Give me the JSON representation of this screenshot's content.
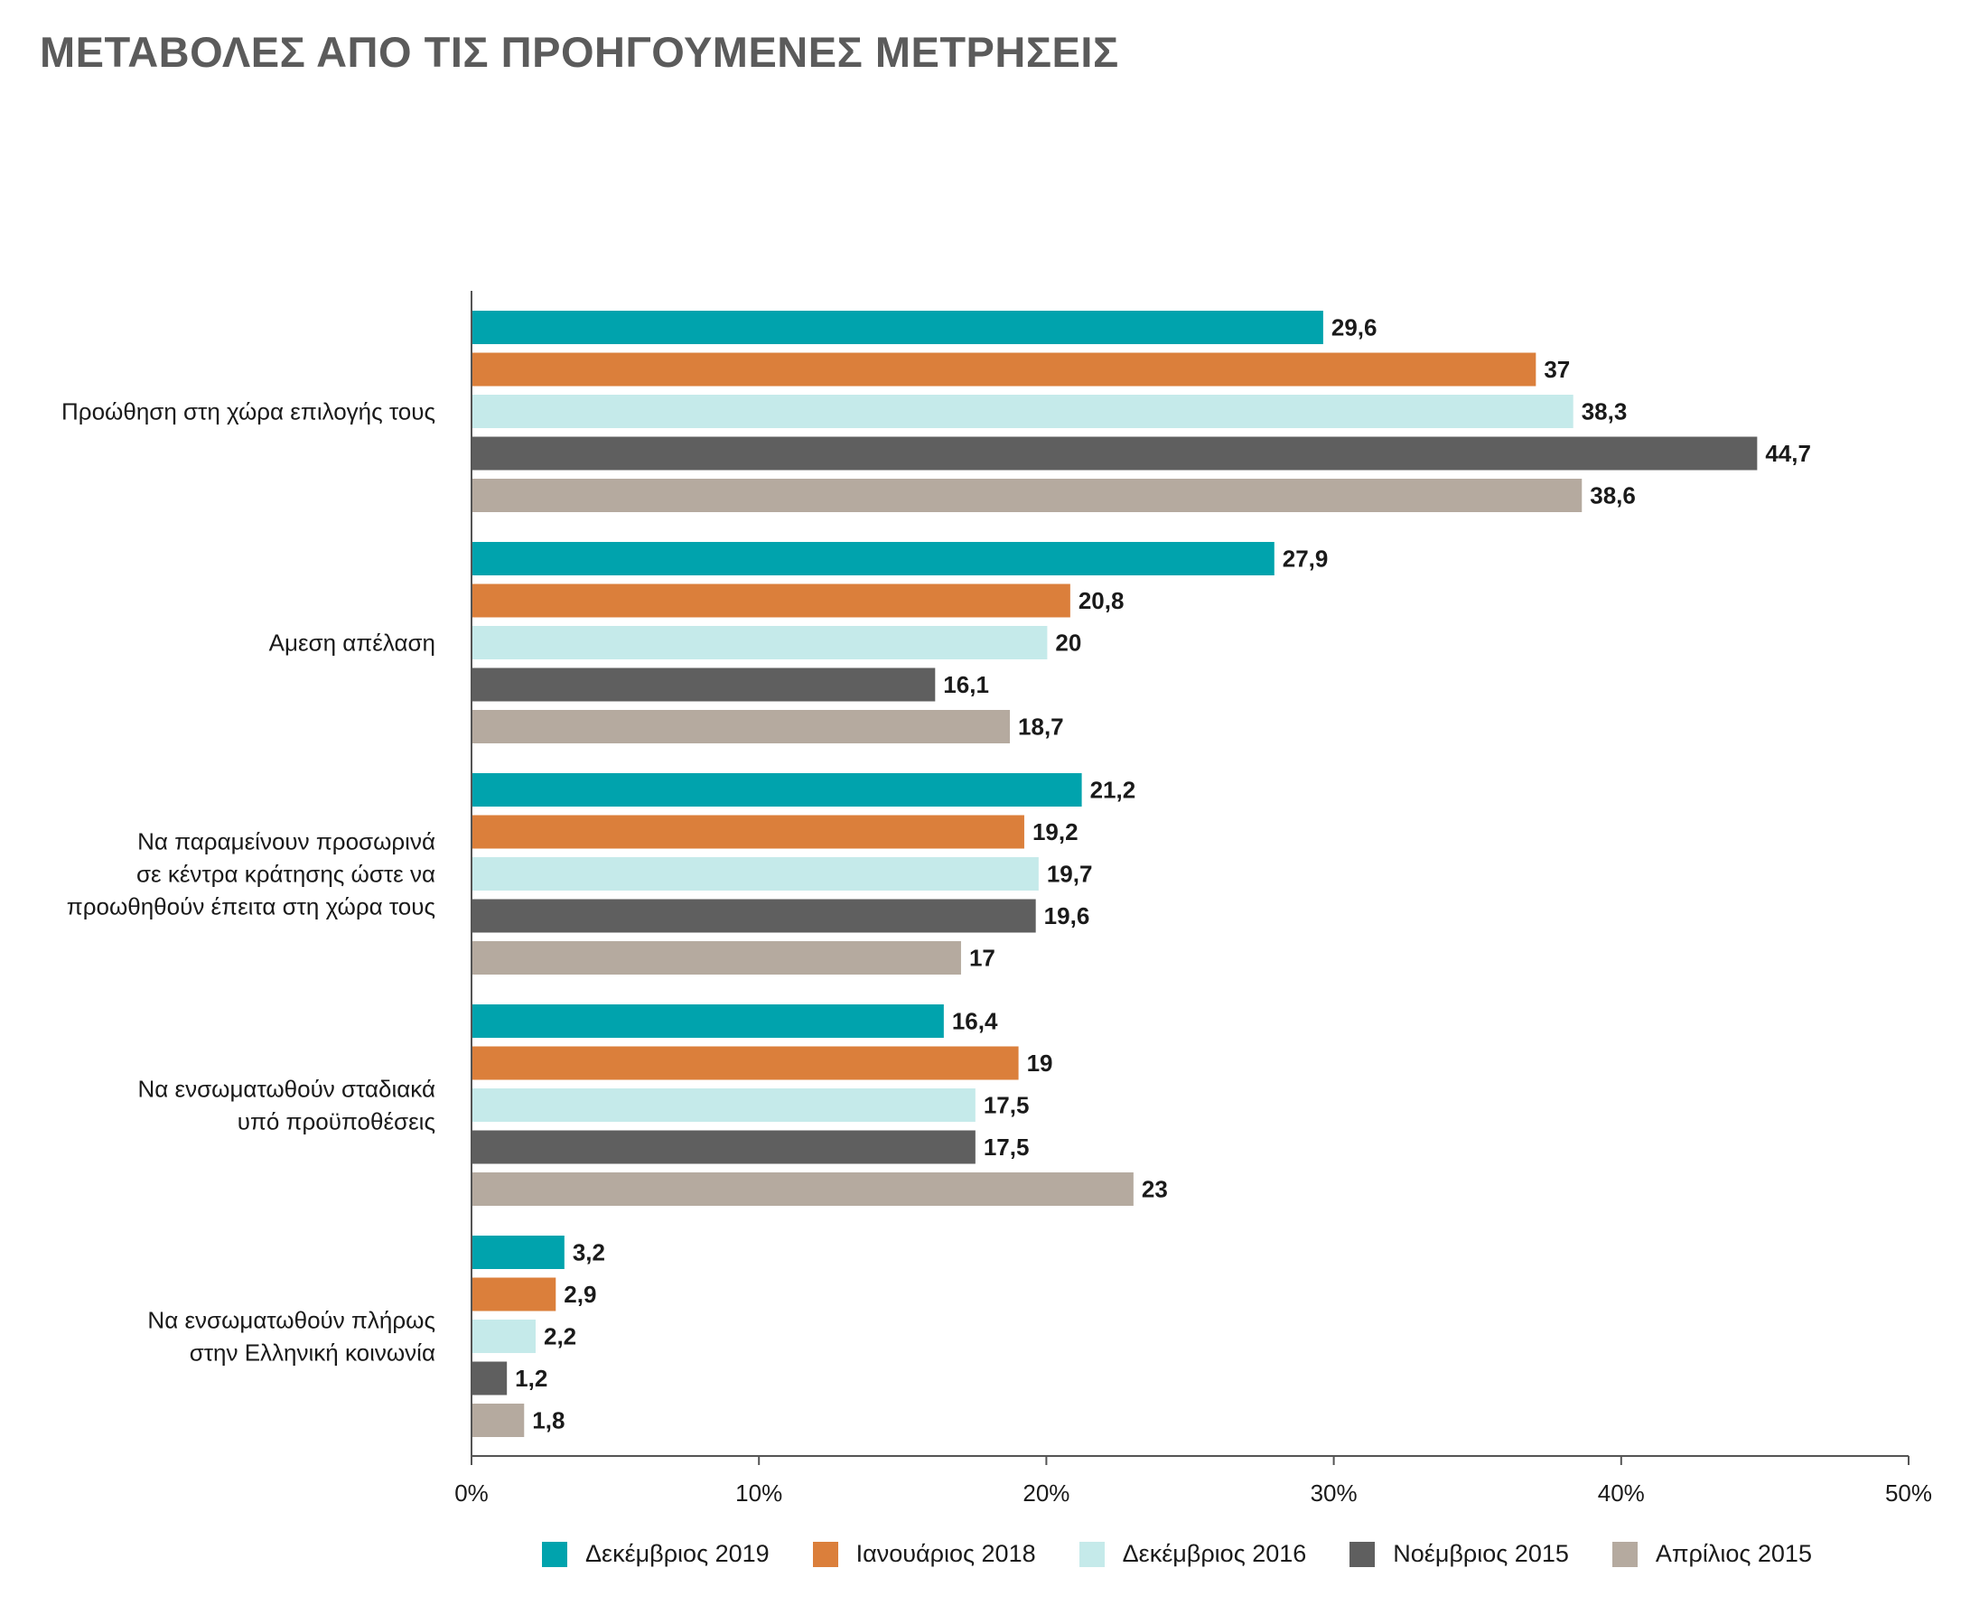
{
  "chart_data": {
    "type": "bar",
    "orientation": "horizontal",
    "title": "ΜΕΤΑΒΟΛΕΣ ΑΠΟ ΤΙΣ ΠΡΟΗΓΟΥΜΕΝΕΣ ΜΕΤΡΗΣΕΙΣ",
    "categories": [
      [
        "Προώθηση στη χώρα επιλογής τους"
      ],
      [
        "Αμεση απέλαση"
      ],
      [
        "Να παραμείνουν προσωρινά",
        "σε κέντρα κράτησης ώστε να",
        "προωθηθούν έπειτα στη χώρα τους"
      ],
      [
        "Να ενσωματωθούν σταδιακά",
        "υπό προϋποθέσεις"
      ],
      [
        "Να ενσωματωθούν πλήρως",
        "στην Ελληνική κοινωνία"
      ]
    ],
    "series": [
      {
        "name": "Δεκέμβριος 2019",
        "color": "#00a3ad",
        "values": [
          29.6,
          27.9,
          21.2,
          16.4,
          3.2
        ],
        "labels": [
          "29,6",
          "27,9",
          "21,2",
          "16,4",
          "3,2"
        ]
      },
      {
        "name": "Ιανουάριος 2018",
        "color": "#db7f3b",
        "values": [
          37,
          20.8,
          19.2,
          19,
          2.9
        ],
        "labels": [
          "37",
          "20,8",
          "19,2",
          "19",
          "2,9"
        ]
      },
      {
        "name": "Δεκέμβριος 2016",
        "color": "#c5eaea",
        "values": [
          38.3,
          20,
          19.7,
          17.5,
          2.2
        ],
        "labels": [
          "38,3",
          "20",
          "19,7",
          "17,5",
          "2,2"
        ]
      },
      {
        "name": "Νοέμβριος 2015",
        "color": "#5f5f5f",
        "values": [
          44.7,
          16.1,
          19.6,
          17.5,
          1.2
        ],
        "labels": [
          "44,7",
          "16,1",
          "19,6",
          "17,5",
          "1,2"
        ]
      },
      {
        "name": "Απρίλιος 2015",
        "color": "#b5aa9f",
        "values": [
          38.6,
          18.7,
          17,
          23,
          1.8
        ],
        "labels": [
          "38,6",
          "18,7",
          "17",
          "23",
          "1,8"
        ]
      }
    ],
    "xlim": [
      0,
      50
    ],
    "xticks": [
      0,
      10,
      20,
      30,
      40,
      50
    ],
    "xtick_labels": [
      "0%",
      "10%",
      "20%",
      "30%",
      "40%",
      "50%"
    ],
    "grid": false,
    "legend_position": "bottom"
  }
}
